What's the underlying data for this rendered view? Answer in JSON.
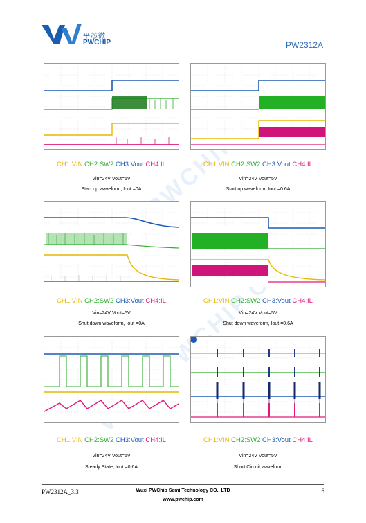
{
  "header": {
    "company_cn": "平芯微",
    "company_en": "PWCHIP",
    "part_number": "PW2312A"
  },
  "panels": [
    {
      "ch1": "CH1:VIN",
      "ch2": "CH2:SW2",
      "ch3": "CH3:Vout",
      "ch4": "CH4:IL",
      "line1": "Vin=24V Vout=5V",
      "line2": "Start up waveform, Iout =0A"
    },
    {
      "ch1": "CH1:VIN",
      "ch2": "CH2:SW2",
      "ch3": "CH3:Vout",
      "ch4": "CH4:IL",
      "line1": "Vin=24V Vout=5V",
      "line2": "Start up waveform, Iout =0.6A"
    },
    {
      "ch1": "CH1:VIN",
      "ch2": "CH2:SW2",
      "ch3": "CH3:Vout",
      "ch4": "CH4:IL",
      "line1": "Vin=24V Vout=5V",
      "line2": "Shut down waveform, Iout =0A"
    },
    {
      "ch1": "CH1:VIN",
      "ch2": "CH2:SW2",
      "ch3": "CH3:Vout",
      "ch4": "CH4:IL",
      "line1": "Vin=24V Vout=5V",
      "line2": "Shut down waveform, Iout =0.6A"
    },
    {
      "ch1": "CH1:VIN",
      "ch2": "CH2:SW2",
      "ch3": "CH3:Vout",
      "ch4": "CH4:IL",
      "line1": "Vin=24V Vout=5V",
      "line2": "Steady State, Iout =0.6A"
    },
    {
      "ch1": "CH1:VIN",
      "ch2": "CH2:SW2",
      "ch3": "CH3:Vout",
      "ch4": "CH4:IL",
      "line1": "Vin=24V Vout=5V",
      "line2": "Short Circuit waveform"
    }
  ],
  "footer": {
    "doc_id": "PW2312A_3.3",
    "company": "Wuxi PWChip Semi Technology CO., LTD",
    "website": "www.pwchip.com",
    "page": "6"
  },
  "watermark": "WWW.PWCHIP.COM",
  "colors": {
    "ch1": "#e6b800",
    "ch2": "#2eae2e",
    "ch3": "#1e5ab4",
    "ch4": "#e0197a",
    "brand": "#1a5cb0"
  }
}
